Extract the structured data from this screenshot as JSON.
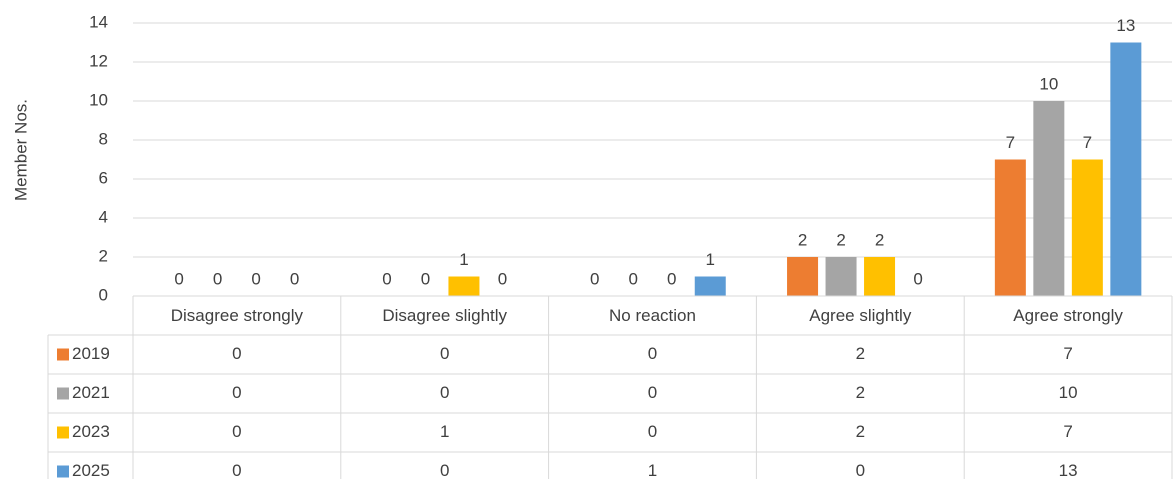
{
  "chart_data": {
    "type": "bar",
    "y_label": "Member Nos.",
    "categories": [
      "Disagree strongly",
      "Disagree slightly",
      "No reaction",
      "Agree slightly",
      "Agree strongly"
    ],
    "series": [
      {
        "name": "2019",
        "color": "#ed7d31",
        "values": [
          0,
          0,
          0,
          2,
          7
        ]
      },
      {
        "name": "2021",
        "color": "#a5a5a5",
        "values": [
          0,
          0,
          0,
          2,
          10
        ]
      },
      {
        "name": "2023",
        "color": "#ffc000",
        "values": [
          0,
          1,
          0,
          2,
          7
        ]
      },
      {
        "name": "2025",
        "color": "#5b9bd5",
        "values": [
          0,
          0,
          1,
          0,
          13
        ]
      }
    ],
    "ylim": [
      0,
      14
    ],
    "yticks": [
      0,
      2,
      4,
      6,
      8,
      10,
      12,
      14
    ],
    "grid": true,
    "data_table": true
  }
}
